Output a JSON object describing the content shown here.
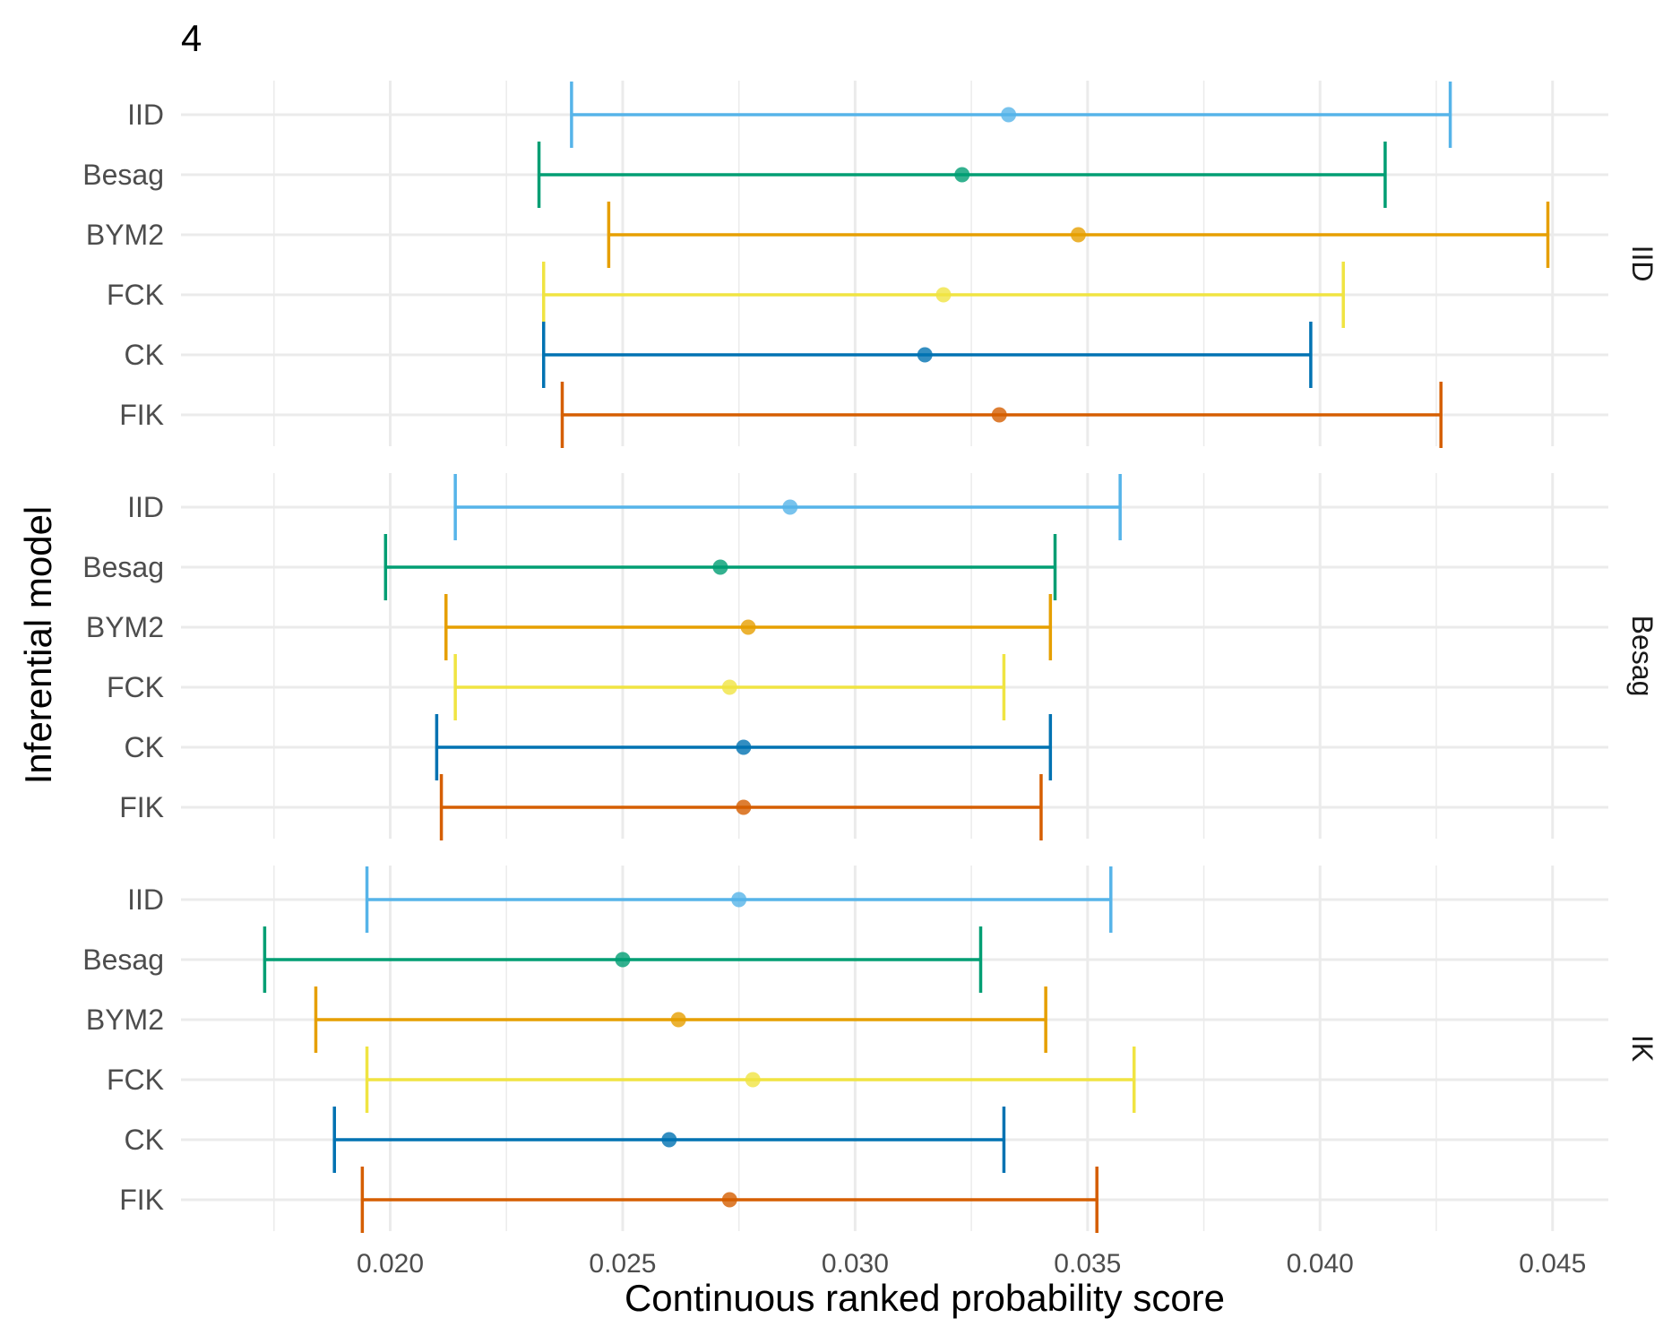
{
  "chart_data": {
    "type": "errorbar",
    "title": "4",
    "xlabel": "Continuous ranked probability score",
    "ylabel": "Inferential model",
    "xlim": [
      0.0155,
      0.0462
    ],
    "x_ticks": [
      "0.020",
      "0.025",
      "0.030",
      "0.035",
      "0.040",
      "0.045"
    ],
    "x_tick_values": [
      0.02,
      0.025,
      0.03,
      0.035,
      0.04,
      0.045
    ],
    "x_minor_values": [
      0.0175,
      0.0225,
      0.0275,
      0.0325,
      0.0375,
      0.0425
    ],
    "grid": true,
    "categories": [
      "IID",
      "Besag",
      "BYM2",
      "FCK",
      "CK",
      "FIK"
    ],
    "colors": {
      "IID": "#56B4E9",
      "Besag": "#009E73",
      "BYM2": "#E69F00",
      "FCK": "#F0E442",
      "CK": "#0072B2",
      "FIK": "#D55E00"
    },
    "panels": [
      {
        "label": "IID",
        "rows": [
          {
            "model": "IID",
            "low": 0.0239,
            "mid": 0.0333,
            "high": 0.0428
          },
          {
            "model": "Besag",
            "low": 0.0232,
            "mid": 0.0323,
            "high": 0.0414
          },
          {
            "model": "BYM2",
            "low": 0.0247,
            "mid": 0.0348,
            "high": 0.0449
          },
          {
            "model": "FCK",
            "low": 0.0233,
            "mid": 0.0319,
            "high": 0.0405
          },
          {
            "model": "CK",
            "low": 0.0233,
            "mid": 0.0315,
            "high": 0.0398
          },
          {
            "model": "FIK",
            "low": 0.0237,
            "mid": 0.0331,
            "high": 0.0426
          }
        ]
      },
      {
        "label": "Besag",
        "rows": [
          {
            "model": "IID",
            "low": 0.0214,
            "mid": 0.0286,
            "high": 0.0357
          },
          {
            "model": "Besag",
            "low": 0.0199,
            "mid": 0.0271,
            "high": 0.0343
          },
          {
            "model": "BYM2",
            "low": 0.0212,
            "mid": 0.0277,
            "high": 0.0342
          },
          {
            "model": "FCK",
            "low": 0.0214,
            "mid": 0.0273,
            "high": 0.0332
          },
          {
            "model": "CK",
            "low": 0.021,
            "mid": 0.0276,
            "high": 0.0342
          },
          {
            "model": "FIK",
            "low": 0.0211,
            "mid": 0.0276,
            "high": 0.034
          }
        ]
      },
      {
        "label": "IK",
        "rows": [
          {
            "model": "IID",
            "low": 0.0195,
            "mid": 0.0275,
            "high": 0.0355
          },
          {
            "model": "Besag",
            "low": 0.0173,
            "mid": 0.025,
            "high": 0.0327
          },
          {
            "model": "BYM2",
            "low": 0.0184,
            "mid": 0.0262,
            "high": 0.0341
          },
          {
            "model": "FCK",
            "low": 0.0195,
            "mid": 0.0278,
            "high": 0.036
          },
          {
            "model": "CK",
            "low": 0.0188,
            "mid": 0.026,
            "high": 0.0332
          },
          {
            "model": "FIK",
            "low": 0.0194,
            "mid": 0.0273,
            "high": 0.0352
          }
        ]
      }
    ]
  }
}
